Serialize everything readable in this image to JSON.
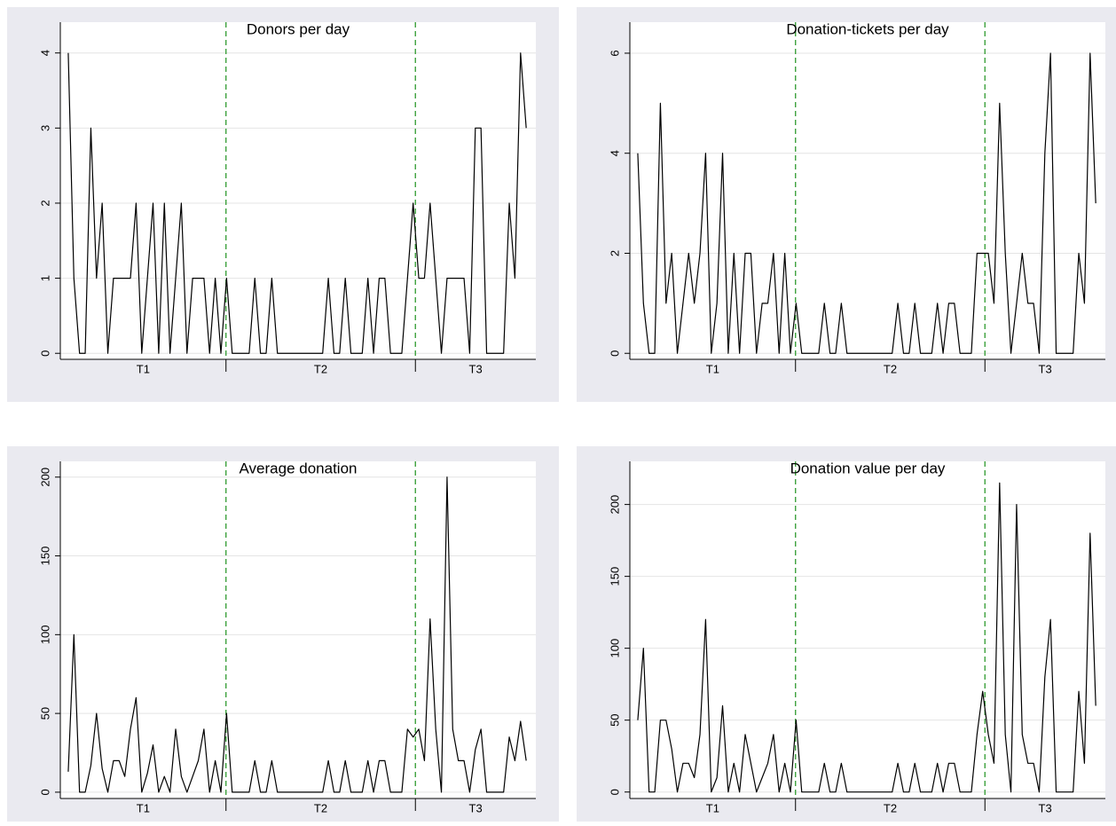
{
  "chart_data": [
    {
      "type": "line",
      "title": "Donors per day",
      "color": "#000000",
      "break_color": "#2e9a2e",
      "grid": true,
      "values": [
        4,
        1,
        0,
        0,
        3,
        1,
        2,
        0,
        1,
        1,
        1,
        1,
        2,
        0,
        1,
        2,
        0,
        2,
        0,
        1,
        2,
        0,
        1,
        1,
        1,
        0,
        1,
        0,
        1,
        0,
        0,
        0,
        0,
        1,
        0,
        0,
        1,
        0,
        0,
        0,
        0,
        0,
        0,
        0,
        0,
        0,
        1,
        0,
        0,
        1,
        0,
        0,
        0,
        1,
        0,
        1,
        1,
        0,
        0,
        0,
        1,
        2,
        1,
        1,
        2,
        1,
        0,
        1,
        1,
        1,
        1,
        0,
        3,
        3,
        0,
        0,
        0,
        0,
        2,
        1,
        4,
        3
      ],
      "xlim": [
        -1.4,
        82.7
      ],
      "ylim": [
        -0.08,
        4.41
      ],
      "yticks": [
        0,
        1,
        2,
        3,
        4
      ],
      "phase_labels": [
        "T1",
        "T2",
        "T3"
      ],
      "phase_breaks": [
        27.9,
        61.4
      ]
    },
    {
      "type": "line",
      "title": "Donation-tickets per day",
      "color": "#000000",
      "break_color": "#2e9a2e",
      "grid": true,
      "values": [
        4,
        1,
        0,
        0,
        5,
        1,
        2,
        0,
        1,
        2,
        1,
        2,
        4,
        0,
        1,
        4,
        0,
        2,
        0,
        2,
        2,
        0,
        1,
        1,
        2,
        0,
        2,
        0,
        1,
        0,
        0,
        0,
        0,
        1,
        0,
        0,
        1,
        0,
        0,
        0,
        0,
        0,
        0,
        0,
        0,
        0,
        1,
        0,
        0,
        1,
        0,
        0,
        0,
        1,
        0,
        1,
        1,
        0,
        0,
        0,
        2,
        2,
        2,
        1,
        5,
        2,
        0,
        1,
        2,
        1,
        1,
        0,
        4,
        6,
        0,
        0,
        0,
        0,
        2,
        1,
        6,
        3
      ],
      "xlim": [
        -1.4,
        82.7
      ],
      "ylim": [
        -0.12,
        6.62
      ],
      "yticks": [
        0,
        2,
        4,
        6
      ],
      "phase_labels": [
        "T1",
        "T2",
        "T3"
      ],
      "phase_breaks": [
        27.9,
        61.4
      ]
    },
    {
      "type": "line",
      "title": "Average donation",
      "color": "#000000",
      "break_color": "#2e9a2e",
      "grid": true,
      "values": [
        13,
        100,
        0,
        0,
        17,
        50,
        15,
        0,
        20,
        20,
        10,
        40,
        60,
        0,
        12,
        30,
        0,
        10,
        0,
        40,
        10,
        0,
        10,
        20,
        40,
        0,
        20,
        0,
        50,
        0,
        0,
        0,
        0,
        20,
        0,
        0,
        20,
        0,
        0,
        0,
        0,
        0,
        0,
        0,
        0,
        0,
        20,
        0,
        0,
        20,
        0,
        0,
        0,
        20,
        0,
        20,
        20,
        0,
        0,
        0,
        40,
        35,
        40,
        20,
        110,
        40,
        0,
        200,
        40,
        20,
        20,
        0,
        27,
        40,
        0,
        0,
        0,
        0,
        35,
        20,
        45,
        20
      ],
      "xlim": [
        -1.4,
        82.7
      ],
      "ylim": [
        -4,
        210
      ],
      "yticks": [
        0,
        50,
        100,
        150,
        200
      ],
      "phase_labels": [
        "T1",
        "T2",
        "T3"
      ],
      "phase_breaks": [
        27.9,
        61.4
      ]
    },
    {
      "type": "line",
      "title": "Donation value per day",
      "color": "#000000",
      "break_color": "#2e9a2e",
      "grid": true,
      "values": [
        50,
        100,
        0,
        0,
        50,
        50,
        30,
        0,
        20,
        20,
        10,
        40,
        120,
        0,
        10,
        60,
        0,
        20,
        0,
        40,
        20,
        0,
        10,
        20,
        40,
        0,
        20,
        0,
        50,
        0,
        0,
        0,
        0,
        20,
        0,
        0,
        20,
        0,
        0,
        0,
        0,
        0,
        0,
        0,
        0,
        0,
        20,
        0,
        0,
        20,
        0,
        0,
        0,
        20,
        0,
        20,
        20,
        0,
        0,
        0,
        40,
        70,
        40,
        20,
        215,
        40,
        0,
        200,
        40,
        20,
        20,
        0,
        80,
        120,
        0,
        0,
        0,
        0,
        70,
        20,
        180,
        60
      ],
      "xlim": [
        -1.4,
        82.7
      ],
      "ylim": [
        -4.5,
        230
      ],
      "yticks": [
        0,
        50,
        100,
        150,
        200
      ],
      "phase_labels": [
        "T1",
        "T2",
        "T3"
      ],
      "phase_breaks": [
        27.9,
        61.4
      ]
    }
  ]
}
